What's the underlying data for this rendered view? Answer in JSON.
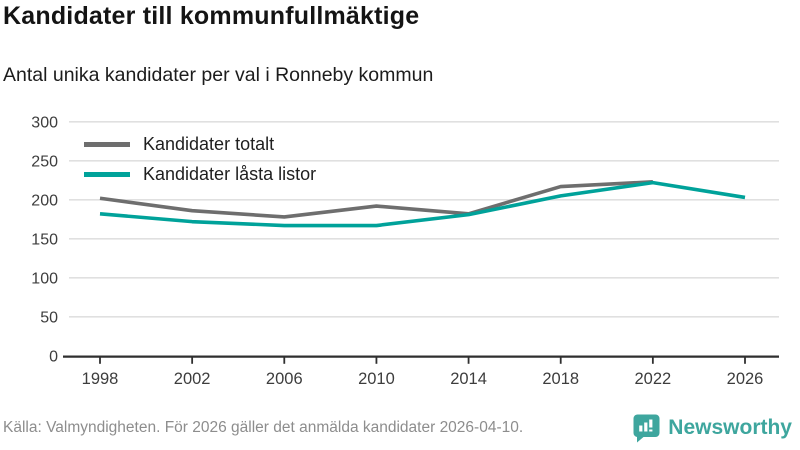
{
  "chart_data": {
    "type": "line",
    "title": "Kandidater till kommunfullmäktige",
    "subtitle": "Antal unika kandidater per val i Ronneby kommun",
    "x": [
      1998,
      2002,
      2006,
      2010,
      2014,
      2018,
      2022,
      2026
    ],
    "series": [
      {
        "name": "Kandidater totalt",
        "color": "#6e6e6e",
        "values": [
          202,
          186,
          178,
          192,
          182,
          217,
          223,
          null
        ]
      },
      {
        "name": "Kandidater låsta listor",
        "color": "#00a29a",
        "values": [
          182,
          172,
          167,
          167,
          181,
          205,
          222,
          203
        ]
      }
    ],
    "ylim": [
      0,
      300
    ],
    "yticks": [
      0,
      50,
      100,
      150,
      200,
      250,
      300
    ],
    "grid": "horizontal-light",
    "legend_position": "top-left-inside"
  },
  "footer": {
    "source": "Källa: Valmyndigheten. För 2026 gäller det anmälda kandidater 2026-04-10."
  },
  "brand": {
    "name": "Newsworthy",
    "color": "#3ea69e",
    "icon": "bar-chart-speech-bubble-icon"
  },
  "colors": {
    "axis": "#2f2f2f",
    "grid": "#e0e0e0",
    "tick_text": "#3d3d3d"
  }
}
